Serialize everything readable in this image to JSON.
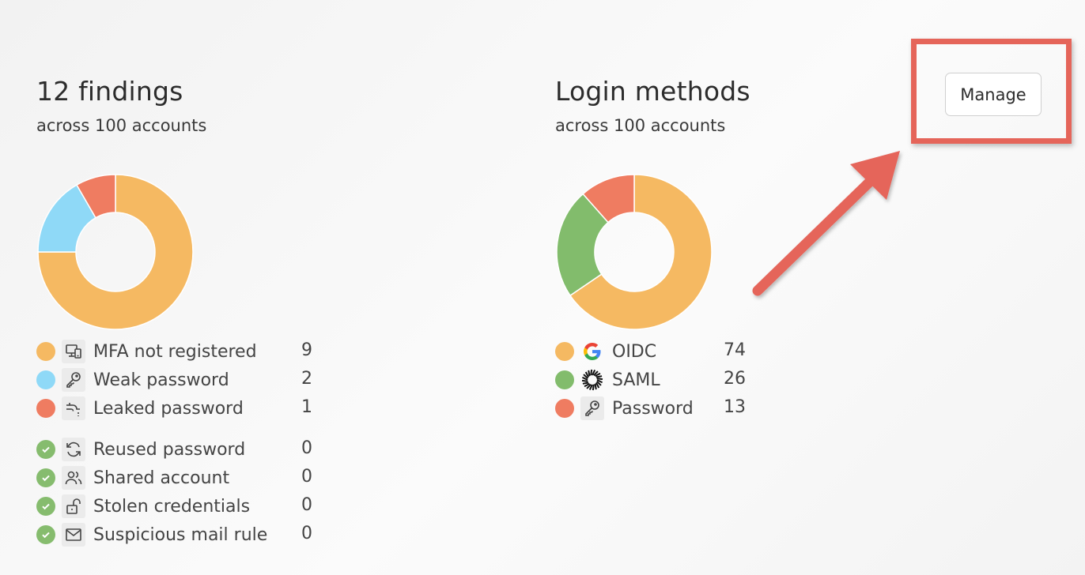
{
  "findings": {
    "title": "12 findings",
    "subtitle": "across 100 accounts",
    "chart_data": {
      "type": "pie",
      "categories": [
        "MFA not registered",
        "Weak password",
        "Leaked password"
      ],
      "values": [
        9,
        2,
        1
      ],
      "colors": [
        "#f5b962",
        "#8fd9f7",
        "#ef7c61"
      ]
    },
    "items": [
      {
        "label": "MFA not registered",
        "count": "9",
        "status": "dot",
        "color": "#f5b962",
        "icon": "devices-icon"
      },
      {
        "label": "Weak password",
        "count": "2",
        "status": "dot",
        "color": "#8fd9f7",
        "icon": "key-icon"
      },
      {
        "label": "Leaked password",
        "count": "1",
        "status": "dot",
        "color": "#ef7c61",
        "icon": "leak-icon"
      },
      {
        "label": "Reused password",
        "count": "0",
        "status": "check",
        "icon": "refresh-icon"
      },
      {
        "label": "Shared account",
        "count": "0",
        "status": "check",
        "icon": "users-icon"
      },
      {
        "label": "Stolen credentials",
        "count": "0",
        "status": "check",
        "icon": "unlock-icon"
      },
      {
        "label": "Suspicious mail rule",
        "count": "0",
        "status": "check",
        "icon": "mail-icon"
      }
    ]
  },
  "login_methods": {
    "title": "Login methods",
    "subtitle": "across 100 accounts",
    "manage_label": "Manage",
    "chart_data": {
      "type": "pie",
      "categories": [
        "OIDC",
        "SAML",
        "Password"
      ],
      "values": [
        74,
        26,
        13
      ],
      "colors": [
        "#f5b962",
        "#82bc6c",
        "#ef7c61"
      ]
    },
    "items": [
      {
        "label": "OIDC",
        "count": "74",
        "color": "#f5b962",
        "icon": "google-icon"
      },
      {
        "label": "SAML",
        "count": "26",
        "color": "#82bc6c",
        "icon": "okta-icon"
      },
      {
        "label": "Password",
        "count": "13",
        "color": "#ef7c61",
        "icon": "key-icon"
      }
    ]
  },
  "annotation": {
    "highlight_color": "#e5655a",
    "arrow_color": "#e5655a"
  },
  "colors": {
    "check_green": "#86bc6e"
  }
}
